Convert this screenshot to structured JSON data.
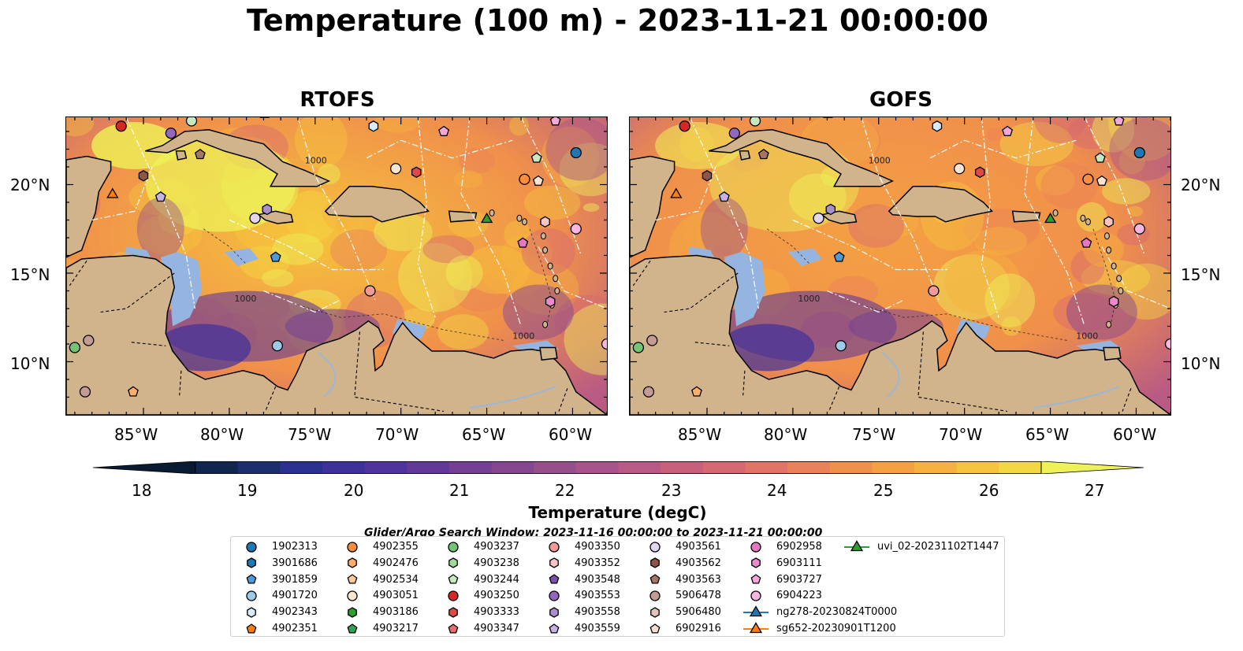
{
  "title": "Temperature (100 m) - 2023-11-21 00:00:00",
  "panels": [
    {
      "name": "RTOFS"
    },
    {
      "name": "GOFS"
    }
  ],
  "axes": {
    "lon_ticks": [
      "85°W",
      "80°W",
      "75°W",
      "70°W",
      "65°W",
      "60°W"
    ],
    "lat_ticks": [
      "20°N",
      "15°N",
      "10°N"
    ],
    "contour_labels": [
      "1000",
      "1000",
      "1000"
    ]
  },
  "colorbar": {
    "title": "Temperature (degC)",
    "ticks": [
      "18",
      "19",
      "20",
      "21",
      "22",
      "23",
      "24",
      "25",
      "26",
      "27"
    ],
    "min": 18,
    "max": 27,
    "colors": [
      "#081b33",
      "#11264f",
      "#1d2e6e",
      "#2b3190",
      "#3f319b",
      "#51339d",
      "#623898",
      "#743f94",
      "#874790",
      "#974f8c",
      "#a8548a",
      "#b85a84",
      "#c8607c",
      "#d66872",
      "#e17466",
      "#ea8158",
      "#f0904b",
      "#f4a043",
      "#f6b13e",
      "#f6c33c",
      "#f3d843",
      "#eef258"
    ]
  },
  "search_window": "Glider/Argo Search Window: 2023-11-16 00:00:00 to 2023-11-21 00:00:00",
  "colors": {
    "land": "#d2b48c",
    "shelf": "#95b5e0",
    "deep_pacific": "#081f33",
    "river": "#9ab8d6"
  },
  "legend": [
    {
      "label": "1902313",
      "shape": "circle",
      "color": "#1f77b4"
    },
    {
      "label": "3901686",
      "shape": "hexagon",
      "color": "#1f77b4"
    },
    {
      "label": "3901859",
      "shape": "pentagon",
      "color": "#4a9bd6"
    },
    {
      "label": "4901720",
      "shape": "circle",
      "color": "#9ecae9"
    },
    {
      "label": "4902343",
      "shape": "hexagon",
      "color": "#d6ecfa"
    },
    {
      "label": "4902351",
      "shape": "pentagon",
      "color": "#ff7f0e"
    },
    {
      "label": "4902355",
      "shape": "circle",
      "color": "#fd8d3c"
    },
    {
      "label": "4902476",
      "shape": "hexagon",
      "color": "#fdae6b"
    },
    {
      "label": "4902534",
      "shape": "pentagon",
      "color": "#fdc99c"
    },
    {
      "label": "4903051",
      "shape": "circle",
      "color": "#fde6cf"
    },
    {
      "label": "4903186",
      "shape": "hexagon",
      "color": "#2ca02c"
    },
    {
      "label": "4903217",
      "shape": "pentagon",
      "color": "#31a354"
    },
    {
      "label": "4903237",
      "shape": "circle",
      "color": "#74c476"
    },
    {
      "label": "4903238",
      "shape": "hexagon",
      "color": "#a1d99b"
    },
    {
      "label": "4903244",
      "shape": "pentagon",
      "color": "#c7e9c0"
    },
    {
      "label": "4903250",
      "shape": "circle",
      "color": "#d62728"
    },
    {
      "label": "4903333",
      "shape": "hexagon",
      "color": "#de4a4a"
    },
    {
      "label": "4903347",
      "shape": "pentagon",
      "color": "#e7706f"
    },
    {
      "label": "4903350",
      "shape": "circle",
      "color": "#f29c9a"
    },
    {
      "label": "4903352",
      "shape": "hexagon",
      "color": "#f7c6c5"
    },
    {
      "label": "4903548",
      "shape": "pentagon",
      "color": "#7b52ab"
    },
    {
      "label": "4903553",
      "shape": "circle",
      "color": "#9467bd"
    },
    {
      "label": "4903558",
      "shape": "hexagon",
      "color": "#a98fd0"
    },
    {
      "label": "4903559",
      "shape": "pentagon",
      "color": "#c6b3e3"
    },
    {
      "label": "4903561",
      "shape": "circle",
      "color": "#e3d6f3"
    },
    {
      "label": "4903562",
      "shape": "hexagon",
      "color": "#8c564b"
    },
    {
      "label": "4903563",
      "shape": "pentagon",
      "color": "#a57565"
    },
    {
      "label": "5906478",
      "shape": "circle",
      "color": "#c49c94"
    },
    {
      "label": "5906480",
      "shape": "hexagon",
      "color": "#e4c3b8"
    },
    {
      "label": "6902916",
      "shape": "pentagon",
      "color": "#f5ddd5"
    },
    {
      "label": "6902958",
      "shape": "circle",
      "color": "#e377c2"
    },
    {
      "label": "6903111",
      "shape": "hexagon",
      "color": "#e98acb"
    },
    {
      "label": "6903727",
      "shape": "pentagon",
      "color": "#f3a8d9"
    },
    {
      "label": "6904223",
      "shape": "circle",
      "color": "#f7b6e2"
    },
    {
      "label": "ng278-20230824T0000",
      "shape": "triangle-line",
      "color": "#1f77b4"
    },
    {
      "label": "sg652-20230901T1200",
      "shape": "triangle-line",
      "color": "#ff7f0e"
    },
    {
      "label": "uvi_02-20231102T1447",
      "shape": "triangle-line",
      "color": "#2ca02c"
    }
  ],
  "markers": [
    {
      "lon": -86.3,
      "lat": 23.3,
      "shape": "circle",
      "color": "#d62728"
    },
    {
      "lon": -83.4,
      "lat": 22.9,
      "shape": "circle",
      "color": "#9467bd"
    },
    {
      "lon": -82.2,
      "lat": 23.6,
      "shape": "circle",
      "color": "#c7e9c0"
    },
    {
      "lon": -81.7,
      "lat": 21.7,
      "shape": "pentagon",
      "color": "#a57565"
    },
    {
      "lon": -85.0,
      "lat": 20.5,
      "shape": "hexagon",
      "color": "#8c564b"
    },
    {
      "lon": -86.8,
      "lat": 19.5,
      "shape": "triangle",
      "color": "#ff7f0e"
    },
    {
      "lon": -84.0,
      "lat": 19.3,
      "shape": "pentagon",
      "color": "#c6b3e3"
    },
    {
      "lon": -71.6,
      "lat": 23.3,
      "shape": "hexagon",
      "color": "#d6ecfa"
    },
    {
      "lon": -67.5,
      "lat": 23.0,
      "shape": "pentagon",
      "color": "#f3a8d9"
    },
    {
      "lon": -61.0,
      "lat": 23.6,
      "shape": "pentagon",
      "color": "#f3a8d9"
    },
    {
      "lon": -59.8,
      "lat": 21.8,
      "shape": "circle",
      "color": "#1f77b4"
    },
    {
      "lon": -62.1,
      "lat": 21.5,
      "shape": "pentagon",
      "color": "#c7e9c0"
    },
    {
      "lon": -62.8,
      "lat": 20.3,
      "shape": "circle",
      "color": "#fd8d3c"
    },
    {
      "lon": -62.0,
      "lat": 20.2,
      "shape": "pentagon",
      "color": "#fde6cf"
    },
    {
      "lon": -70.3,
      "lat": 20.9,
      "shape": "circle",
      "color": "#fde6cf"
    },
    {
      "lon": -69.1,
      "lat": 20.7,
      "shape": "hexagon",
      "color": "#de4a4a"
    },
    {
      "lon": -77.8,
      "lat": 18.6,
      "shape": "hexagon",
      "color": "#a98fd0"
    },
    {
      "lon": -78.5,
      "lat": 18.1,
      "shape": "circle",
      "color": "#e3d6f3"
    },
    {
      "lon": -65.0,
      "lat": 18.1,
      "shape": "triangle",
      "color": "#2ca02c"
    },
    {
      "lon": -61.6,
      "lat": 17.9,
      "shape": "hexagon",
      "color": "#f7c6c5"
    },
    {
      "lon": -59.8,
      "lat": 17.5,
      "shape": "circle",
      "color": "#f7b6e2"
    },
    {
      "lon": -62.9,
      "lat": 16.7,
      "shape": "pentagon",
      "color": "#e377c2"
    },
    {
      "lon": -77.3,
      "lat": 15.9,
      "shape": "pentagon",
      "color": "#4a9bd6"
    },
    {
      "lon": -71.8,
      "lat": 14.0,
      "shape": "circle",
      "color": "#f29c9a"
    },
    {
      "lon": -61.3,
      "lat": 13.4,
      "shape": "hexagon",
      "color": "#e98acb"
    },
    {
      "lon": -77.2,
      "lat": 10.9,
      "shape": "circle",
      "color": "#9ecae9"
    },
    {
      "lon": -88.2,
      "lat": 11.2,
      "shape": "circle",
      "color": "#c49c94"
    },
    {
      "lon": -88.4,
      "lat": 8.3,
      "shape": "circle",
      "color": "#c49c94"
    },
    {
      "lon": -85.6,
      "lat": 8.3,
      "shape": "pentagon",
      "color": "#fdae6b"
    },
    {
      "lon": -58.0,
      "lat": 11.0,
      "shape": "circle",
      "color": "#f7b6e2"
    },
    {
      "lon": -89.0,
      "lat": 10.8,
      "shape": "circle",
      "color": "#74c476"
    }
  ]
}
